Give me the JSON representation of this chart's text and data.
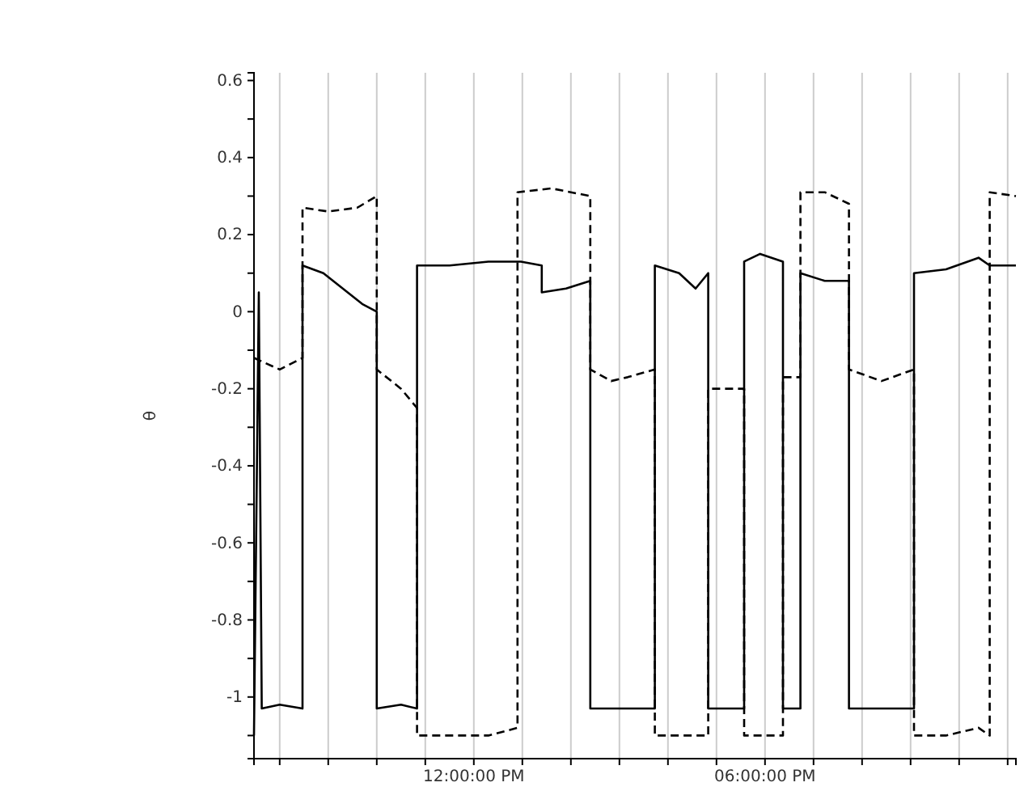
{
  "chart_data": {
    "type": "line",
    "ylabel": "θ",
    "grid": "x",
    "xlim": [
      7.47,
      23.17
    ],
    "ylim": [
      -1.16,
      0.62
    ],
    "xticks": [
      {
        "value": 8,
        "label": null
      },
      {
        "value": 9,
        "label": null
      },
      {
        "value": 10,
        "label": null
      },
      {
        "value": 11,
        "label": null
      },
      {
        "value": 12,
        "label": "12:00:00 PM"
      },
      {
        "value": 13,
        "label": null
      },
      {
        "value": 14,
        "label": null
      },
      {
        "value": 15,
        "label": null
      },
      {
        "value": 16,
        "label": null
      },
      {
        "value": 17,
        "label": null
      },
      {
        "value": 18,
        "label": "06:00:00 PM"
      },
      {
        "value": 19,
        "label": null
      },
      {
        "value": 20,
        "label": null
      },
      {
        "value": 21,
        "label": null
      },
      {
        "value": 22,
        "label": null
      },
      {
        "value": 23,
        "label": null
      }
    ],
    "yticks": [
      0.6,
      {
        "value": 0.5,
        "label": null
      },
      0.4,
      {
        "value": 0.3,
        "label": null
      },
      0.2,
      {
        "value": 0.1,
        "label": null
      },
      0,
      {
        "value": -0.1,
        "label": null
      },
      -0.2,
      {
        "value": -0.3,
        "label": null
      },
      -0.4,
      {
        "value": -0.5,
        "label": null
      },
      -0.6,
      {
        "value": -0.7,
        "label": null
      },
      -0.8,
      {
        "value": -0.9,
        "label": null
      },
      -1,
      {
        "value": -1.1,
        "label": null
      }
    ],
    "series": [
      {
        "color": "#000000",
        "line_style": "solid",
        "x": [
          7.47,
          7.57,
          7.63,
          8.0,
          8.47,
          8.47,
          8.9,
          9.4,
          9.7,
          10.0,
          10.0,
          10.5,
          10.83,
          10.83,
          11.5,
          12.3,
          12.97,
          13.4,
          13.4,
          13.9,
          14.4,
          14.4,
          15.17,
          15.73,
          15.73,
          16.23,
          16.57,
          16.83,
          16.83,
          17.57,
          17.57,
          17.9,
          18.37,
          18.37,
          18.73,
          18.73,
          19.23,
          19.73,
          19.73,
          21.07,
          21.07,
          21.73,
          22.4,
          22.63,
          23.17
        ],
        "values": [
          -1.1,
          0.05,
          -1.03,
          -1.02,
          -1.03,
          0.12,
          0.1,
          0.05,
          0.02,
          0.0,
          -1.03,
          -1.02,
          -1.03,
          0.12,
          0.12,
          0.13,
          0.13,
          0.12,
          0.05,
          0.06,
          0.08,
          -1.03,
          -1.03,
          -1.03,
          0.12,
          0.1,
          0.06,
          0.1,
          -1.03,
          -1.03,
          0.13,
          0.15,
          0.13,
          -1.03,
          -1.03,
          0.1,
          0.08,
          0.08,
          -1.03,
          -1.03,
          0.1,
          0.11,
          0.14,
          0.12,
          0.12
        ]
      },
      {
        "color": "#000000",
        "line_style": "dashed",
        "x": [
          7.47,
          8.0,
          8.47,
          8.47,
          9.0,
          9.6,
          10.0,
          10.0,
          10.5,
          10.83,
          10.83,
          11.5,
          12.3,
          12.9,
          12.9,
          13.6,
          14.4,
          14.4,
          14.83,
          15.17,
          15.73,
          15.73,
          16.83,
          16.83,
          17.57,
          17.57,
          18.37,
          18.37,
          18.73,
          18.73,
          19.23,
          19.73,
          19.73,
          20.4,
          21.07,
          21.07,
          21.73,
          22.4,
          22.63,
          22.63,
          23.17
        ],
        "values": [
          -0.12,
          -0.15,
          -0.12,
          0.27,
          0.26,
          0.27,
          0.3,
          -0.15,
          -0.2,
          -0.25,
          -1.1,
          -1.1,
          -1.1,
          -1.08,
          0.31,
          0.32,
          0.3,
          -0.15,
          -0.18,
          -0.17,
          -0.15,
          -1.1,
          -1.1,
          -0.2,
          -0.2,
          -1.1,
          -1.1,
          -0.17,
          -0.17,
          0.31,
          0.31,
          0.28,
          -0.15,
          -0.18,
          -0.15,
          -1.1,
          -1.1,
          -1.08,
          -1.1,
          0.31,
          0.3
        ]
      }
    ]
  }
}
